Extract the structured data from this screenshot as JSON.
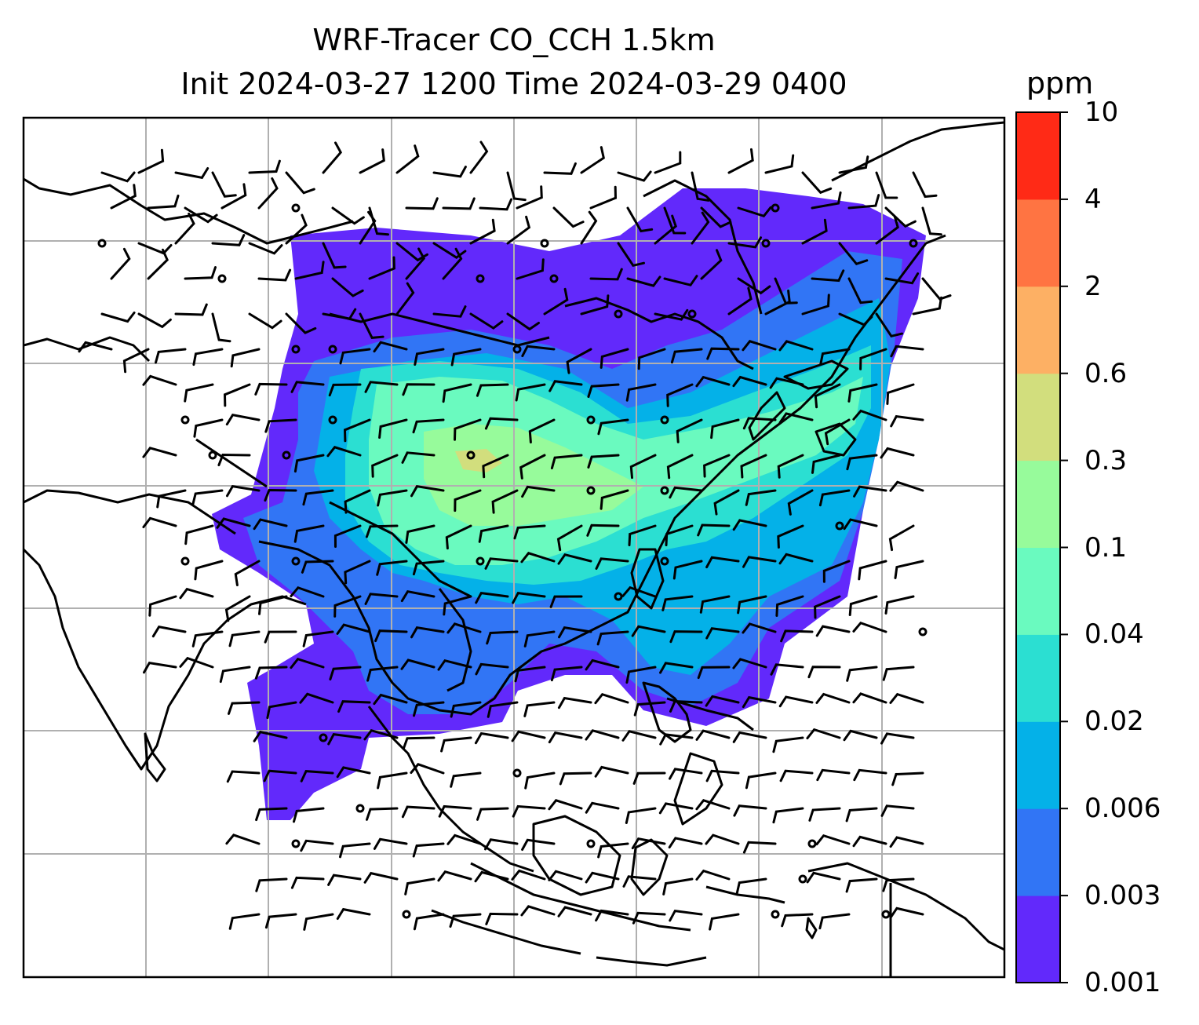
{
  "title": {
    "line1": "WRF-Tracer CO_CCH 1.5km",
    "line2": "Init 2024-03-27 1200 Time 2024-03-29 0400"
  },
  "colorbar": {
    "unit": "ppm",
    "levels": [
      "0.001",
      "0.003",
      "0.006",
      "0.02",
      "0.04",
      "0.1",
      "0.3",
      "0.6",
      "2",
      "4",
      "10"
    ],
    "colors": [
      "#6229fb",
      "#3175f5",
      "#04b1e8",
      "#2bdfd2",
      "#6afabf",
      "#97fb9b",
      "#d2de7d",
      "#fdb064",
      "#ff7442",
      "#ff2a16"
    ]
  },
  "map": {
    "overlay": "wind barbs",
    "coastlines": true,
    "gridlines": true,
    "background": "#ffffff"
  }
}
